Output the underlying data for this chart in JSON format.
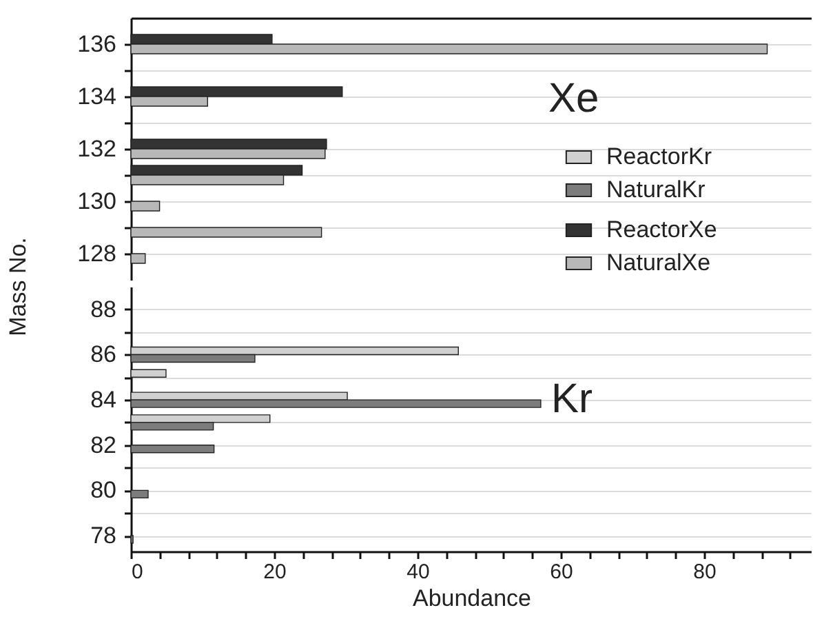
{
  "chart_data": [
    {
      "type": "bar",
      "orientation": "horizontal",
      "ylabel": "Mass No.",
      "annotations": [
        "Xe"
      ],
      "legend": "right",
      "tick_labels": "y",
      "grid": "y",
      "xlim": [
        0,
        95
      ],
      "ylim": [
        127,
        137
      ],
      "yticks": [
        128,
        {
          "value": 129,
          "label": null
        },
        130,
        {
          "value": 131,
          "label": null
        },
        132,
        {
          "value": 133,
          "label": null
        },
        134,
        {
          "value": 135,
          "label": null
        },
        136
      ],
      "series": [
        {
          "name": "ReactorXe",
          "color": "#333333",
          "x": [
            136,
            134,
            132,
            131
          ],
          "values": [
            19.7,
            29.5,
            27.3,
            23.9
          ]
        },
        {
          "name": "NaturalXe",
          "color": "#b8b8b8",
          "x": [
            136,
            134,
            132,
            131,
            130,
            129,
            128
          ],
          "values": [
            88.8,
            10.7,
            27.1,
            21.3,
            4.0,
            26.6,
            2.0
          ]
        }
      ]
    },
    {
      "type": "bar",
      "orientation": "horizontal",
      "xlabel": "Abundance",
      "annotations": [
        "Kr"
      ],
      "legend": "top right",
      "grid": "y",
      "xlim": [
        0,
        95
      ],
      "ylim": [
        77.3,
        89
      ],
      "xticks": [
        0,
        {
          "value": 4,
          "label": null
        },
        {
          "value": 8,
          "label": null
        },
        {
          "value": 12,
          "label": null
        },
        {
          "value": 16,
          "label": null
        },
        20,
        {
          "value": 24,
          "label": null
        },
        {
          "value": 28,
          "label": null
        },
        {
          "value": 32,
          "label": null
        },
        {
          "value": 36,
          "label": null
        },
        40,
        {
          "value": 44,
          "label": null
        },
        {
          "value": 48,
          "label": null
        },
        {
          "value": 52,
          "label": null
        },
        {
          "value": 56,
          "label": null
        },
        60,
        {
          "value": 64,
          "label": null
        },
        {
          "value": 68,
          "label": null
        },
        {
          "value": 72,
          "label": null
        },
        {
          "value": 76,
          "label": null
        },
        80,
        {
          "value": 84,
          "label": null
        },
        {
          "value": 88,
          "label": null
        },
        {
          "value": 92,
          "label": null
        }
      ],
      "yticks": [
        78,
        {
          "value": 79,
          "label": null
        },
        80,
        {
          "value": 81,
          "label": null
        },
        82,
        {
          "value": 83,
          "label": null
        },
        84,
        {
          "value": 85,
          "label": null
        },
        86,
        {
          "value": 87,
          "label": null
        },
        88
      ],
      "series": [
        {
          "name": "ReactorKr",
          "color": "#d0d0d0",
          "x": [
            86,
            85,
            84,
            83
          ],
          "values": [
            45.7,
            4.9,
            30.2,
            19.4
          ]
        },
        {
          "name": "NaturalKr",
          "color": "#7c7c7c",
          "x": [
            86,
            84,
            83,
            82,
            80,
            78
          ],
          "values": [
            17.3,
            57.2,
            11.5,
            11.6,
            2.4,
            0.3
          ]
        }
      ]
    }
  ]
}
